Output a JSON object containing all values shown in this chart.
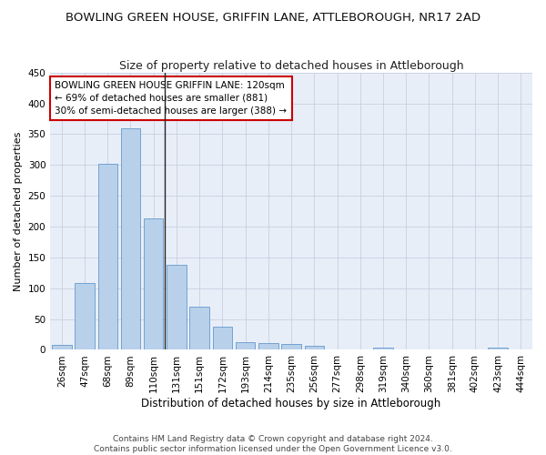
{
  "title": "BOWLING GREEN HOUSE, GRIFFIN LANE, ATTLEBOROUGH, NR17 2AD",
  "subtitle": "Size of property relative to detached houses in Attleborough",
  "xlabel": "Distribution of detached houses by size in Attleborough",
  "ylabel": "Number of detached properties",
  "categories": [
    "26sqm",
    "47sqm",
    "68sqm",
    "89sqm",
    "110sqm",
    "131sqm",
    "151sqm",
    "172sqm",
    "193sqm",
    "214sqm",
    "235sqm",
    "256sqm",
    "277sqm",
    "298sqm",
    "319sqm",
    "340sqm",
    "360sqm",
    "381sqm",
    "402sqm",
    "423sqm",
    "444sqm"
  ],
  "values": [
    8,
    108,
    302,
    360,
    213,
    138,
    70,
    38,
    13,
    11,
    10,
    6,
    0,
    0,
    4,
    0,
    0,
    0,
    0,
    4,
    0
  ],
  "bar_color": "#b8d0ea",
  "bar_edge_color": "#6699cc",
  "vline_color": "#222222",
  "annotation_text": "BOWLING GREEN HOUSE GRIFFIN LANE: 120sqm\n← 69% of detached houses are smaller (881)\n30% of semi-detached houses are larger (388) →",
  "annotation_box_color": "white",
  "annotation_box_edge_color": "#cc0000",
  "ylim": [
    0,
    450
  ],
  "yticks": [
    0,
    50,
    100,
    150,
    200,
    250,
    300,
    350,
    400,
    450
  ],
  "footer_text": "Contains HM Land Registry data © Crown copyright and database right 2024.\nContains public sector information licensed under the Open Government Licence v3.0.",
  "bg_color": "#ffffff",
  "plot_bg_color": "#e8eef8",
  "grid_color": "#c8d0e0",
  "title_fontsize": 9.5,
  "subtitle_fontsize": 9,
  "xlabel_fontsize": 8.5,
  "ylabel_fontsize": 8,
  "tick_fontsize": 7.5,
  "annotation_fontsize": 7.5,
  "footer_fontsize": 6.5
}
